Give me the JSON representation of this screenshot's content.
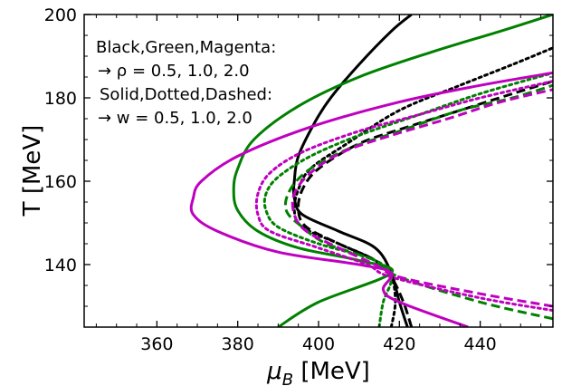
{
  "chart_data": {
    "type": "line",
    "xlabel_main": "μ",
    "xlabel_sub": "B",
    "xlabel_unit": " [MeV]",
    "ylabel": "T [MeV]",
    "xlim": [
      342,
      458
    ],
    "ylim": [
      125,
      200
    ],
    "xticks": [
      360,
      380,
      400,
      420,
      440
    ],
    "yticks": [
      140,
      160,
      180,
      200
    ],
    "xtick_labels": [
      "360",
      "380",
      "400",
      "420",
      "440"
    ],
    "ytick_labels": [
      "140",
      "160",
      "180",
      "200"
    ],
    "grid": false,
    "annotations": [
      "Black,Green,Magenta:",
      "→  ρ = 0.5, 1.0, 2.0",
      "Solid,Dotted,Dashed:",
      "→ w = 0.5, 1.0, 2.0"
    ],
    "colors": {
      "black": "#000000",
      "green": "#008000",
      "magenta": "#bf00bf"
    },
    "series": [
      {
        "color": "black",
        "style": "solid",
        "points": [
          [
            422,
            125
          ],
          [
            420,
            131
          ],
          [
            418,
            138
          ],
          [
            414,
            144
          ],
          [
            405,
            148
          ],
          [
            396,
            152
          ],
          [
            394,
            156
          ],
          [
            394,
            160
          ],
          [
            395,
            166
          ],
          [
            399,
            174
          ],
          [
            403,
            180
          ],
          [
            410,
            188
          ],
          [
            418,
            196
          ],
          [
            423,
            200
          ]
        ]
      },
      {
        "color": "black",
        "style": "dotted",
        "points": [
          [
            418,
            125
          ],
          [
            419,
            131
          ],
          [
            418,
            137
          ],
          [
            414,
            141
          ],
          [
            405,
            145
          ],
          [
            396,
            149
          ],
          [
            394,
            153
          ],
          [
            395,
            158
          ],
          [
            398,
            163
          ],
          [
            407,
            169
          ],
          [
            420,
            177
          ],
          [
            435,
            183
          ],
          [
            448,
            188
          ],
          [
            458,
            192
          ]
        ]
      },
      {
        "color": "black",
        "style": "dashed",
        "points": [
          [
            423,
            125
          ],
          [
            421,
            131
          ],
          [
            418,
            137
          ],
          [
            414,
            141
          ],
          [
            405,
            145
          ],
          [
            397,
            149
          ],
          [
            395,
            153
          ],
          [
            396,
            158
          ],
          [
            400,
            163
          ],
          [
            410,
            169
          ],
          [
            422,
            173
          ],
          [
            435,
            177
          ],
          [
            448,
            181
          ],
          [
            458,
            184
          ]
        ]
      },
      {
        "color": "green",
        "style": "solid",
        "points": [
          [
            390,
            125
          ],
          [
            400,
            131
          ],
          [
            418,
            138
          ],
          [
            410,
            141
          ],
          [
            395,
            144
          ],
          [
            385,
            148
          ],
          [
            380,
            153
          ],
          [
            379,
            158
          ],
          [
            380,
            163
          ],
          [
            384,
            170
          ],
          [
            395,
            178
          ],
          [
            410,
            185
          ],
          [
            428,
            191
          ],
          [
            445,
            196
          ],
          [
            458,
            200
          ]
        ]
      },
      {
        "color": "green",
        "style": "dotted",
        "points": [
          [
            415,
            125
          ],
          [
            416,
            131
          ],
          [
            418,
            137
          ],
          [
            414,
            141
          ],
          [
            400,
            145
          ],
          [
            390,
            149
          ],
          [
            387,
            153
          ],
          [
            387,
            157
          ],
          [
            390,
            161
          ],
          [
            398,
            166
          ],
          [
            410,
            171
          ],
          [
            425,
            176
          ],
          [
            440,
            181
          ],
          [
            458,
            186
          ]
        ]
      },
      {
        "color": "green",
        "style": "dashed",
        "points": [
          [
            458,
            127
          ],
          [
            440,
            131
          ],
          [
            420,
            137
          ],
          [
            414,
            141
          ],
          [
            402,
            145
          ],
          [
            396,
            149
          ],
          [
            392,
            153
          ],
          [
            393,
            158
          ],
          [
            398,
            163
          ],
          [
            408,
            168
          ],
          [
            420,
            172
          ],
          [
            435,
            177
          ],
          [
            448,
            180
          ],
          [
            458,
            183
          ]
        ]
      },
      {
        "color": "magenta",
        "style": "solid",
        "points": [
          [
            437,
            125
          ],
          [
            420,
            131
          ],
          [
            416,
            134
          ],
          [
            418,
            138
          ],
          [
            410,
            140
          ],
          [
            390,
            143
          ],
          [
            375,
            148
          ],
          [
            369,
            152
          ],
          [
            369,
            156
          ],
          [
            371,
            160
          ],
          [
            380,
            166
          ],
          [
            398,
            173
          ],
          [
            420,
            179
          ],
          [
            440,
            183
          ],
          [
            458,
            186
          ]
        ]
      },
      {
        "color": "magenta",
        "style": "dotted",
        "points": [
          [
            458,
            129
          ],
          [
            440,
            132
          ],
          [
            418,
            137
          ],
          [
            412,
            140
          ],
          [
            400,
            144
          ],
          [
            388,
            148
          ],
          [
            385,
            152
          ],
          [
            385,
            157
          ],
          [
            388,
            162
          ],
          [
            396,
            167
          ],
          [
            410,
            172
          ],
          [
            425,
            176
          ],
          [
            440,
            180
          ],
          [
            458,
            184
          ]
        ]
      },
      {
        "color": "magenta",
        "style": "dashed",
        "points": [
          [
            458,
            130
          ],
          [
            440,
            133
          ],
          [
            420,
            137
          ],
          [
            414,
            140
          ],
          [
            405,
            144
          ],
          [
            397,
            148
          ],
          [
            394,
            152
          ],
          [
            394,
            157
          ],
          [
            398,
            162
          ],
          [
            406,
            167
          ],
          [
            418,
            171
          ],
          [
            432,
            175
          ],
          [
            445,
            179
          ],
          [
            458,
            182
          ]
        ]
      }
    ]
  }
}
